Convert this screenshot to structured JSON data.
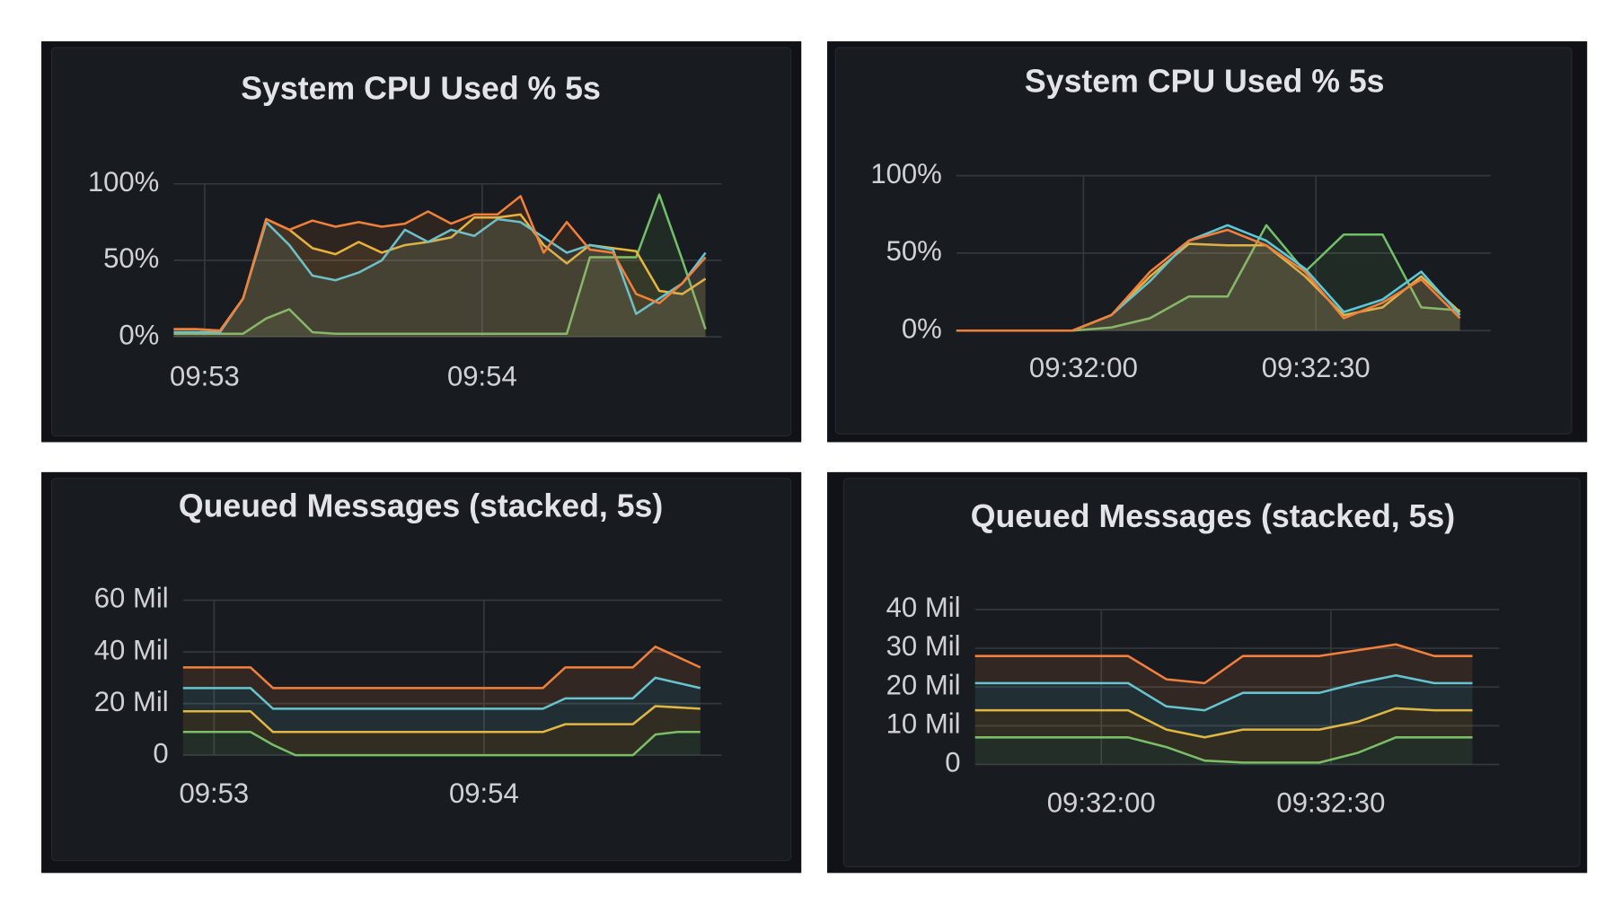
{
  "chart_data": [
    {
      "type": "line",
      "title": "System CPU Used % 5s",
      "stacked": false,
      "grid": true,
      "xlim": [
        0,
        23.7
      ],
      "xticks": [
        {
          "value": 1.34,
          "label": "09:53"
        },
        {
          "value": 13.34,
          "label": "09:54"
        }
      ],
      "ylim": [
        0,
        100
      ],
      "yticks": [
        {
          "value": 0,
          "label": "0%"
        },
        {
          "value": 50,
          "label": "50%"
        },
        {
          "value": 100,
          "label": "100%"
        }
      ],
      "series": [
        {
          "color": "#73bf69",
          "values": [
            2,
            2,
            2,
            2,
            12,
            18,
            3,
            2,
            2,
            2,
            2,
            2,
            2,
            2,
            2,
            2,
            2,
            2,
            52,
            52,
            52,
            93,
            50,
            5
          ]
        },
        {
          "color": "#e8b73a",
          "values": [
            5,
            5,
            4,
            25,
            77,
            70,
            58,
            54,
            62,
            55,
            60,
            62,
            65,
            78,
            78,
            80,
            60,
            48,
            60,
            58,
            56,
            30,
            28,
            38
          ]
        },
        {
          "color": "#5fc8d8",
          "values": [
            3,
            3,
            3,
            25,
            75,
            60,
            40,
            37,
            42,
            50,
            70,
            62,
            70,
            66,
            77,
            75,
            65,
            55,
            60,
            57,
            15,
            25,
            35,
            55
          ]
        },
        {
          "color": "#f2803a",
          "values": [
            5,
            5,
            4,
            25,
            77,
            70,
            76,
            72,
            75,
            72,
            74,
            82,
            74,
            80,
            80,
            92,
            55,
            75,
            57,
            55,
            28,
            22,
            35,
            52
          ]
        }
      ]
    },
    {
      "type": "line",
      "title": "System CPU Used % 5s",
      "stacked": false,
      "grid": true,
      "xlim": [
        0,
        13.8
      ],
      "xticks": [
        {
          "value": 3.28,
          "label": "09:32:00"
        },
        {
          "value": 9.28,
          "label": "09:32:30"
        }
      ],
      "ylim": [
        0,
        100
      ],
      "yticks": [
        {
          "value": 0,
          "label": "0%"
        },
        {
          "value": 50,
          "label": "50%"
        },
        {
          "value": 100,
          "label": "100%"
        }
      ],
      "series": [
        {
          "color": "#73bf69",
          "values": [
            0,
            0,
            0,
            0,
            2,
            8,
            22,
            22,
            68,
            38,
            62,
            62,
            15,
            13
          ]
        },
        {
          "color": "#e8b73a",
          "values": [
            0,
            0,
            0,
            0,
            10,
            35,
            56,
            55,
            55,
            35,
            10,
            15,
            35,
            12
          ]
        },
        {
          "color": "#5fc8d8",
          "values": [
            0,
            0,
            0,
            0,
            10,
            32,
            58,
            68,
            58,
            40,
            12,
            20,
            38,
            10
          ]
        },
        {
          "color": "#f2803a",
          "values": [
            0,
            0,
            0,
            0,
            10,
            38,
            58,
            65,
            55,
            38,
            8,
            18,
            33,
            8
          ]
        }
      ]
    },
    {
      "type": "line",
      "title": "Queued Messages (stacked, 5s)",
      "stacked": true,
      "grid": true,
      "xlim": [
        0,
        23.95
      ],
      "xticks": [
        {
          "value": 1.38,
          "label": "09:53"
        },
        {
          "value": 13.38,
          "label": "09:54"
        }
      ],
      "ylim": [
        0,
        60
      ],
      "yticks": [
        0,
        {
          "value": 20,
          "label": "20 Mil"
        },
        {
          "value": 40,
          "label": "40 Mil"
        },
        {
          "value": 60,
          "label": "60 Mil"
        }
      ],
      "series": [
        {
          "color": "#73bf69",
          "values": [
            9,
            9,
            9,
            9,
            4,
            0,
            0,
            0,
            0,
            0,
            0,
            0,
            0,
            0,
            0,
            0,
            0,
            0,
            0,
            0,
            0,
            8,
            9,
            9
          ]
        },
        {
          "color": "#e8b73a",
          "values": [
            8,
            8,
            8,
            8,
            5,
            9,
            9,
            9,
            9,
            9,
            9,
            9,
            9,
            9,
            9,
            9,
            9,
            12,
            12,
            12,
            12,
            11,
            9.5,
            9
          ]
        },
        {
          "color": "#5fc8d8",
          "values": [
            9,
            9,
            9,
            9,
            9,
            9,
            9,
            9,
            9,
            9,
            9,
            9,
            9,
            9,
            9,
            9,
            9,
            10,
            10,
            10,
            10,
            11,
            9.5,
            8
          ]
        },
        {
          "color": "#f2803a",
          "values": [
            8,
            8,
            8,
            8,
            8,
            8,
            8,
            8,
            8,
            8,
            8,
            8,
            8,
            8,
            8,
            8,
            8,
            12,
            12,
            12,
            12,
            12,
            10,
            8
          ]
        }
      ]
    },
    {
      "type": "line",
      "title": "Queued Messages (stacked, 5s)",
      "stacked": true,
      "grid": true,
      "xlim": [
        0,
        13.7
      ],
      "xticks": [
        {
          "value": 3.3,
          "label": "09:32:00"
        },
        {
          "value": 9.3,
          "label": "09:32:30"
        }
      ],
      "ylim": [
        0,
        40
      ],
      "yticks": [
        0,
        {
          "value": 10,
          "label": "10 Mil"
        },
        {
          "value": 20,
          "label": "20 Mil"
        },
        {
          "value": 30,
          "label": "30 Mil"
        },
        {
          "value": 40,
          "label": "40 Mil"
        }
      ],
      "series": [
        {
          "color": "#73bf69",
          "values": [
            7,
            7,
            7,
            7,
            7,
            4.5,
            1,
            0.5,
            0.5,
            0.5,
            3,
            7,
            7,
            7
          ]
        },
        {
          "color": "#e8b73a",
          "values": [
            7,
            7,
            7,
            7,
            7,
            4.5,
            6,
            8.5,
            8.5,
            8.5,
            8,
            7.5,
            7,
            7
          ]
        },
        {
          "color": "#5fc8d8",
          "values": [
            7,
            7,
            7,
            7,
            7,
            6,
            7,
            9.5,
            9.5,
            9.5,
            10,
            8.5,
            7,
            7
          ]
        },
        {
          "color": "#f2803a",
          "values": [
            7,
            7,
            7,
            7,
            7,
            7,
            7,
            9.5,
            9.5,
            9.5,
            8.5,
            8,
            7,
            7
          ]
        }
      ]
    }
  ]
}
